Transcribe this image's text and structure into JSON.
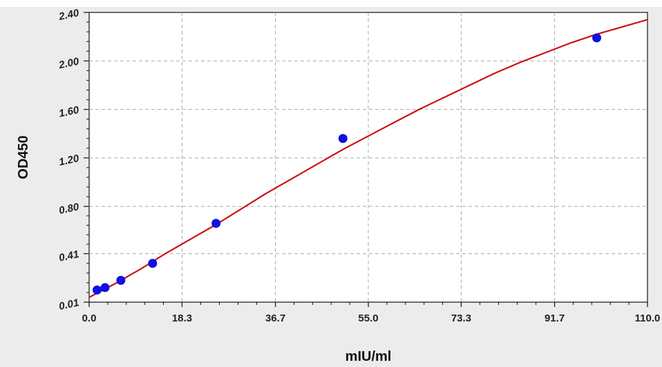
{
  "chart_data": {
    "type": "scatter",
    "title": "",
    "xlabel": "mIU/ml",
    "ylabel": "OD450",
    "xlim": [
      0,
      110
    ],
    "ylim": [
      0.01,
      2.4
    ],
    "x_ticks": [
      "0.0",
      "18.3",
      "36.7",
      "55.0",
      "73.3",
      "91.7",
      "110.0"
    ],
    "x_tick_values": [
      0,
      18.3,
      36.7,
      55.0,
      73.3,
      91.7,
      110.0
    ],
    "y_ticks": [
      "0.01",
      "0.41",
      "0.80",
      "1.20",
      "1.60",
      "2.00",
      "2.40"
    ],
    "y_tick_values": [
      0.01,
      0.41,
      0.8,
      1.2,
      1.6,
      2.0,
      2.4
    ],
    "grid": true,
    "series": [
      {
        "type": "scatter",
        "color": "#1010e0",
        "x": [
          1.56,
          3.13,
          6.25,
          12.5,
          25,
          50,
          100
        ],
        "y": [
          0.11,
          0.13,
          0.19,
          0.33,
          0.66,
          1.36,
          2.19
        ]
      },
      {
        "type": "fit-curve",
        "color": "#cc1111",
        "x": [
          0,
          5,
          10,
          15,
          20,
          25,
          30,
          35,
          40,
          45,
          50,
          55,
          60,
          65,
          70,
          75,
          80,
          85,
          90,
          95,
          100,
          105,
          110
        ],
        "y": [
          0.05,
          0.16,
          0.28,
          0.41,
          0.53,
          0.65,
          0.78,
          0.91,
          1.03,
          1.15,
          1.27,
          1.38,
          1.49,
          1.6,
          1.7,
          1.8,
          1.9,
          1.99,
          2.07,
          2.15,
          2.22,
          2.28,
          2.34
        ]
      }
    ]
  }
}
